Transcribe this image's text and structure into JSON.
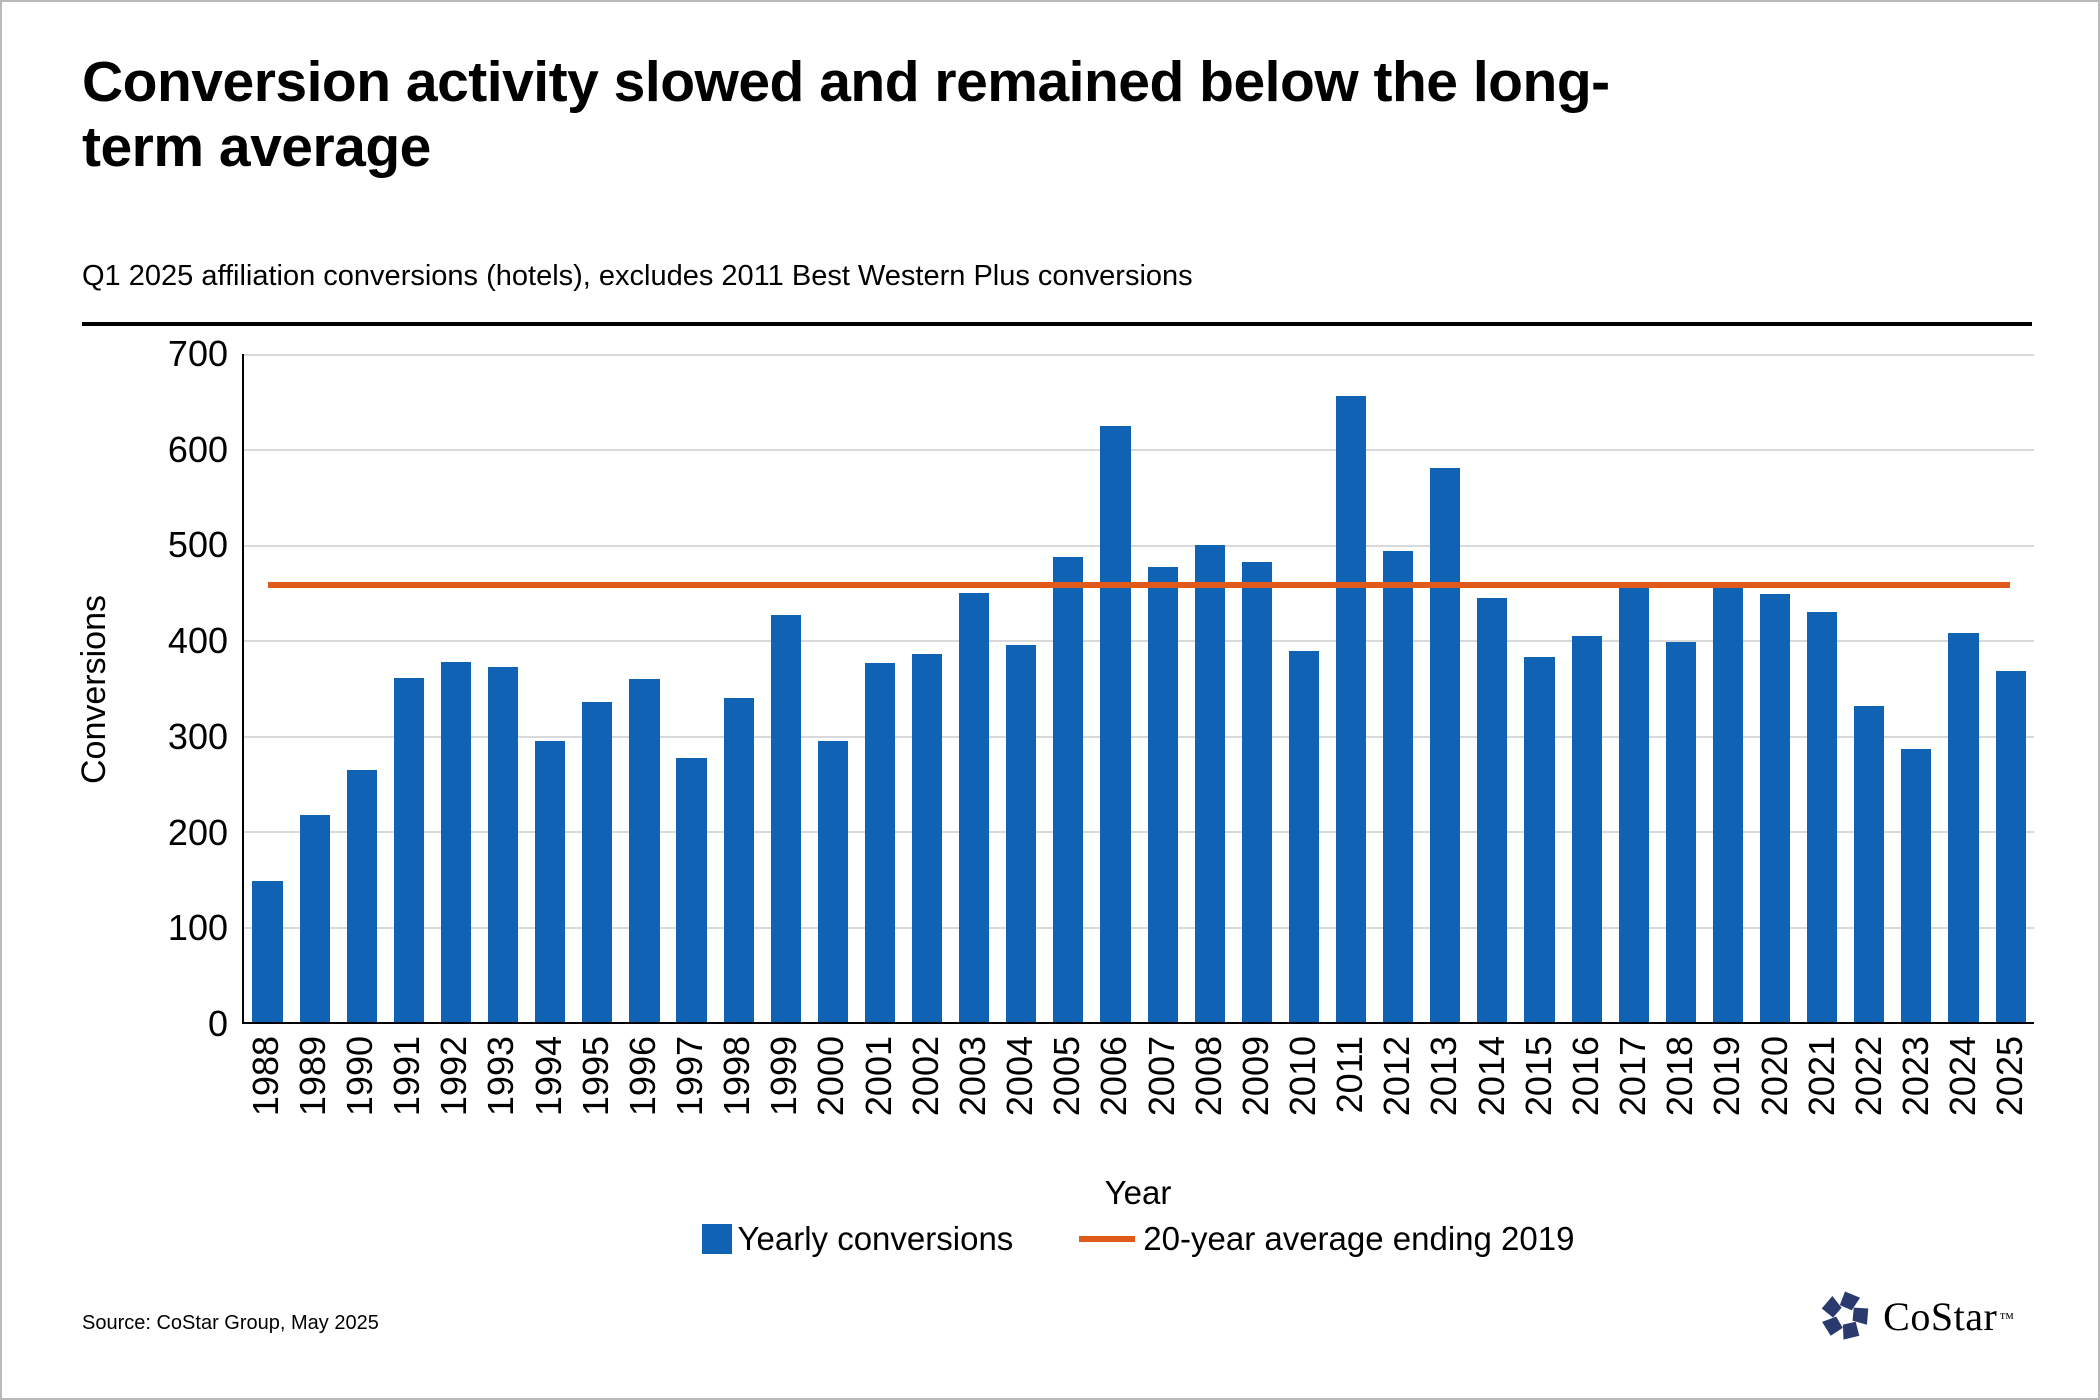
{
  "title": "Conversion activity slowed and remained below the long-term average",
  "subtitle": "Q1 2025 affiliation conversions (hotels), excludes 2011 Best Western Plus conversions",
  "source": "Source: CoStar Group, May 2025",
  "logo": {
    "text": "CoStar",
    "tm": "™",
    "icon": "costar-pinwheel-icon",
    "color": "#2a3a6e"
  },
  "colors": {
    "bar_blue": "#1062b4",
    "avg_orange": "#e2591c",
    "gridline": "#d9d9d9",
    "axis": "#000000"
  },
  "chart_data": {
    "type": "bar",
    "title": "",
    "xlabel": "Year",
    "ylabel": "Conversions",
    "ylim": [
      0,
      700
    ],
    "yticks": [
      0,
      100,
      200,
      300,
      400,
      500,
      600,
      700
    ],
    "grid": true,
    "legend_position": "bottom",
    "categories": [
      "1988",
      "1989",
      "1990",
      "1991",
      "1992",
      "1993",
      "1994",
      "1995",
      "1996",
      "1997",
      "1998",
      "1999",
      "2000",
      "2001",
      "2002",
      "2003",
      "2004",
      "2005",
      "2006",
      "2007",
      "2008",
      "2009",
      "2010",
      "2011",
      "2012",
      "2013",
      "2014",
      "2015",
      "2016",
      "2017",
      "2018",
      "2019",
      "2020",
      "2021",
      "2022",
      "2023",
      "2024",
      "2025"
    ],
    "series": [
      {
        "name": "Yearly conversions",
        "type": "bar",
        "color": "#1062b4",
        "values": [
          148,
          217,
          264,
          361,
          377,
          372,
          295,
          335,
          359,
          277,
          340,
          426,
          294,
          376,
          386,
          450,
          395,
          487,
          625,
          477,
          500,
          482,
          389,
          656,
          494,
          581,
          444,
          383,
          404,
          455,
          398,
          455,
          448,
          430,
          331,
          286,
          408,
          368
        ]
      },
      {
        "name": "20-year average ending 2019",
        "type": "line",
        "color": "#e2591c",
        "value": 458
      }
    ]
  }
}
